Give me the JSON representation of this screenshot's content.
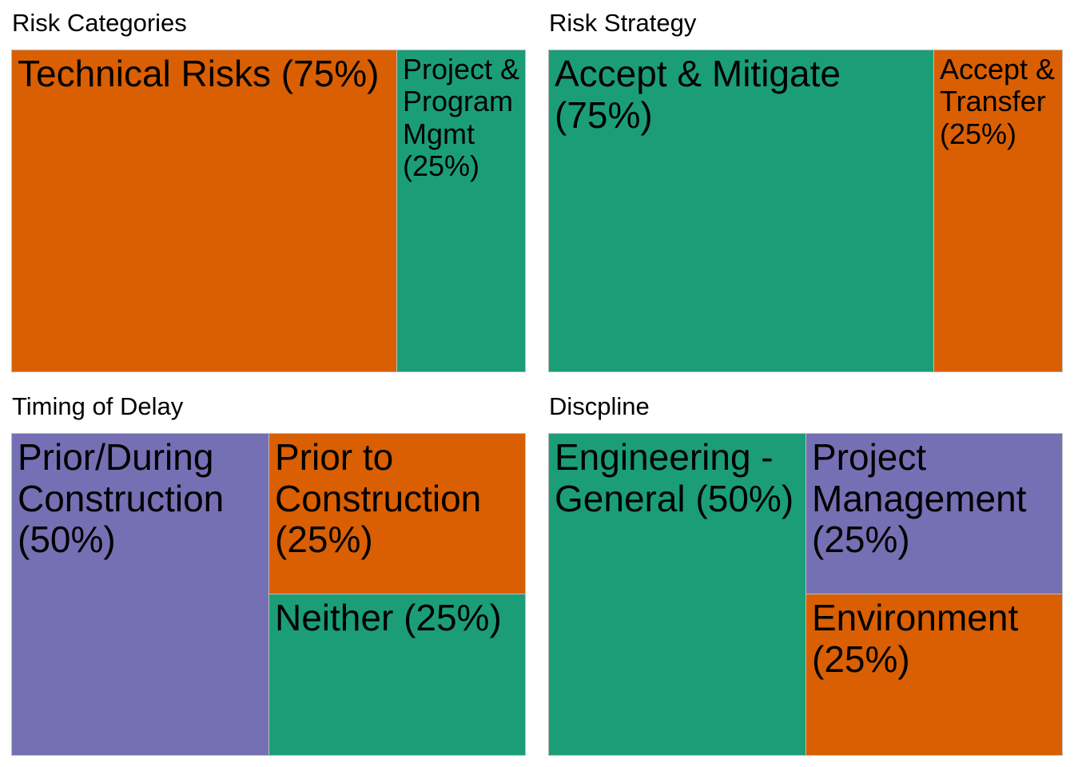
{
  "colors": {
    "orange": "#d95f02",
    "teal": "#1b9e77",
    "purple": "#7570b3"
  },
  "chart_data": [
    {
      "type": "treemap",
      "title": "Risk Categories",
      "items": [
        {
          "label": "Technical Risks (75%)",
          "value": 75,
          "color": "#d95f02"
        },
        {
          "label": "Project & Program Mgmt (25%)",
          "value": 25,
          "color": "#1b9e77"
        }
      ]
    },
    {
      "type": "treemap",
      "title": "Risk Strategy",
      "items": [
        {
          "label": "Accept & Mitigate (75%)",
          "value": 75,
          "color": "#1b9e77"
        },
        {
          "label": "Accept & Transfer (25%)",
          "value": 25,
          "color": "#d95f02"
        }
      ]
    },
    {
      "type": "treemap",
      "title": "Timing of Delay",
      "items": [
        {
          "label": "Prior/During Construction (50%)",
          "value": 50,
          "color": "#7570b3"
        },
        {
          "label": "Prior to Construction (25%)",
          "value": 25,
          "color": "#d95f02"
        },
        {
          "label": "Neither (25%)",
          "value": 25,
          "color": "#1b9e77"
        }
      ]
    },
    {
      "type": "treemap",
      "title": "Discpline",
      "items": [
        {
          "label": "Engineering - General (50%)",
          "value": 50,
          "color": "#1b9e77"
        },
        {
          "label": "Project Management (25%)",
          "value": 25,
          "color": "#7570b3"
        },
        {
          "label": "Environment (25%)",
          "value": 25,
          "color": "#d95f02"
        }
      ]
    }
  ]
}
